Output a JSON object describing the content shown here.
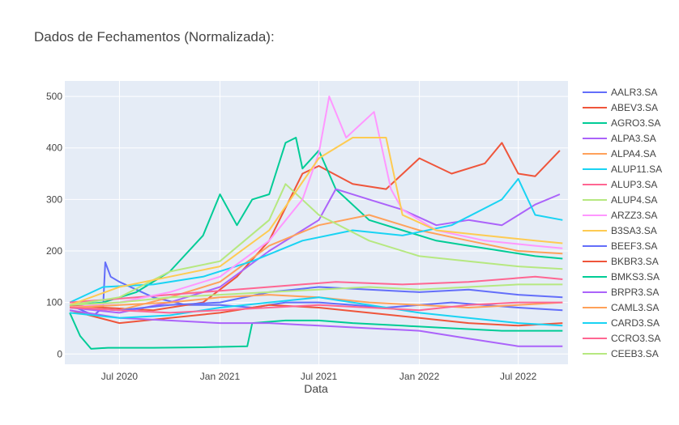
{
  "chart_data": {
    "type": "line",
    "title": "Dados de Fechamentos (Normalizada):",
    "xlabel": "Data",
    "ylabel": "",
    "x_range": [
      "2020-03-23",
      "2022-09-30"
    ],
    "ylim": [
      -20,
      530
    ],
    "x_ticks": [
      {
        "date": "2020-07-01",
        "label": "Jul 2020"
      },
      {
        "date": "2021-01-01",
        "label": "Jan 2021"
      },
      {
        "date": "2021-07-01",
        "label": "Jul 2021"
      },
      {
        "date": "2022-01-01",
        "label": "Jan 2022"
      },
      {
        "date": "2022-07-01",
        "label": "Jul 2022"
      }
    ],
    "y_ticks": [
      0,
      100,
      200,
      300,
      400,
      500
    ],
    "grid": true,
    "legend_position": "right",
    "series": [
      {
        "name": "AALR3.SA",
        "color": "#636efa",
        "x": [
          "2020-04-01",
          "2020-05-15",
          "2020-06-01",
          "2020-06-05",
          "2020-06-15",
          "2020-07-01",
          "2020-09-01",
          "2020-11-01",
          "2021-01-01",
          "2021-03-01",
          "2021-05-01",
          "2021-07-01",
          "2021-09-01",
          "2021-11-01",
          "2022-01-01",
          "2022-03-01",
          "2022-05-01",
          "2022-07-01",
          "2022-09-20"
        ],
        "y": [
          95,
          75,
          90,
          178,
          150,
          140,
          110,
          95,
          95,
          90,
          100,
          100,
          95,
          90,
          95,
          100,
          95,
          90,
          85
        ]
      },
      {
        "name": "ABEV3.SA",
        "color": "#ef553b",
        "x": [
          "2020-04-01",
          "2020-06-01",
          "2020-09-01",
          "2020-12-01",
          "2021-02-01",
          "2021-04-01",
          "2021-06-01",
          "2021-07-01",
          "2021-09-01",
          "2021-11-01",
          "2022-01-01",
          "2022-03-01",
          "2022-05-01",
          "2022-06-01",
          "2022-07-01",
          "2022-08-01",
          "2022-09-15"
        ],
        "y": [
          95,
          90,
          85,
          100,
          150,
          220,
          350,
          365,
          330,
          320,
          380,
          350,
          370,
          410,
          350,
          345,
          395
        ]
      },
      {
        "name": "AGRO3.SA",
        "color": "#00cc96",
        "x": [
          "2020-04-01",
          "2020-06-01",
          "2020-08-01",
          "2020-10-01",
          "2020-12-01",
          "2021-01-01",
          "2021-02-01",
          "2021-03-01",
          "2021-04-01",
          "2021-05-01",
          "2021-05-20",
          "2021-06-01",
          "2021-07-01",
          "2021-08-01",
          "2021-10-01",
          "2021-12-01",
          "2022-02-01",
          "2022-04-01",
          "2022-06-01",
          "2022-08-01",
          "2022-09-20"
        ],
        "y": [
          95,
          100,
          120,
          160,
          230,
          310,
          250,
          300,
          310,
          410,
          420,
          360,
          395,
          320,
          260,
          240,
          220,
          210,
          200,
          190,
          185
        ]
      },
      {
        "name": "ALPA3.SA",
        "color": "#ab63fa",
        "x": [
          "2020-04-01",
          "2020-07-01",
          "2020-10-01",
          "2021-01-01",
          "2021-04-01",
          "2021-07-01",
          "2021-08-01",
          "2021-10-01",
          "2021-12-01",
          "2022-02-01",
          "2022-04-01",
          "2022-06-01",
          "2022-08-01",
          "2022-09-15"
        ],
        "y": [
          90,
          80,
          100,
          130,
          200,
          260,
          320,
          300,
          280,
          250,
          260,
          250,
          290,
          310
        ]
      },
      {
        "name": "ALPA4.SA",
        "color": "#ffa15a",
        "x": [
          "2020-04-01",
          "2020-07-01",
          "2020-10-01",
          "2021-01-01",
          "2021-04-01",
          "2021-07-01",
          "2021-10-01",
          "2022-01-01",
          "2022-04-01",
          "2022-07-01",
          "2022-09-20"
        ],
        "y": [
          92,
          85,
          110,
          140,
          210,
          250,
          270,
          240,
          220,
          200,
          195
        ]
      },
      {
        "name": "ALUP11.SA",
        "color": "#19d3f3",
        "x": [
          "2020-04-01",
          "2020-06-01",
          "2020-09-01",
          "2020-12-01",
          "2021-03-01",
          "2021-06-01",
          "2021-09-01",
          "2021-12-01",
          "2022-03-01",
          "2022-06-01",
          "2022-07-01",
          "2022-08-01",
          "2022-09-20"
        ],
        "y": [
          100,
          130,
          135,
          150,
          180,
          220,
          240,
          230,
          250,
          300,
          340,
          270,
          260
        ]
      },
      {
        "name": "ALUP3.SA",
        "color": "#ff6692",
        "x": [
          "2020-04-01",
          "2020-08-01",
          "2020-12-01",
          "2021-04-01",
          "2021-08-01",
          "2021-12-01",
          "2022-04-01",
          "2022-08-01",
          "2022-09-20"
        ],
        "y": [
          100,
          110,
          120,
          130,
          140,
          135,
          140,
          150,
          145
        ]
      },
      {
        "name": "ALUP4.SA",
        "color": "#b6e880",
        "x": [
          "2020-04-01",
          "2020-07-01",
          "2020-10-01",
          "2021-01-01",
          "2021-04-01",
          "2021-05-01",
          "2021-07-01",
          "2021-10-01",
          "2022-01-01",
          "2022-04-01",
          "2022-07-01",
          "2022-09-20"
        ],
        "y": [
          95,
          110,
          160,
          180,
          260,
          330,
          270,
          220,
          190,
          180,
          170,
          165
        ]
      },
      {
        "name": "ARZZ3.SA",
        "color": "#ff97ff",
        "x": [
          "2020-04-01",
          "2020-07-01",
          "2020-10-01",
          "2021-01-01",
          "2021-04-01",
          "2021-06-01",
          "2021-07-01",
          "2021-07-20",
          "2021-08-20",
          "2021-10-10",
          "2021-11-10",
          "2021-12-01",
          "2022-02-01",
          "2022-05-01",
          "2022-08-01",
          "2022-09-20"
        ],
        "y": [
          90,
          100,
          120,
          150,
          220,
          300,
          390,
          500,
          420,
          470,
          320,
          280,
          240,
          220,
          210,
          205
        ]
      },
      {
        "name": "B3SA3.SA",
        "color": "#fecb52",
        "x": [
          "2020-04-01",
          "2020-07-01",
          "2020-10-01",
          "2021-01-01",
          "2021-04-01",
          "2021-07-01",
          "2021-09-01",
          "2021-11-01",
          "2021-12-01",
          "2022-02-01",
          "2022-05-01",
          "2022-08-01",
          "2022-09-20"
        ],
        "y": [
          95,
          130,
          150,
          170,
          240,
          380,
          420,
          420,
          270,
          240,
          230,
          220,
          215
        ]
      },
      {
        "name": "BEEF3.SA",
        "color": "#636efa",
        "x": [
          "2020-04-01",
          "2020-07-01",
          "2020-10-01",
          "2021-01-01",
          "2021-04-01",
          "2021-07-01",
          "2021-10-01",
          "2022-01-01",
          "2022-04-01",
          "2022-07-01",
          "2022-09-20"
        ],
        "y": [
          90,
          85,
          95,
          100,
          120,
          130,
          125,
          120,
          125,
          115,
          110
        ]
      },
      {
        "name": "BKBR3.SA",
        "color": "#ef553b",
        "x": [
          "2020-04-01",
          "2020-07-01",
          "2020-10-01",
          "2021-01-01",
          "2021-04-01",
          "2021-07-01",
          "2021-10-01",
          "2022-01-01",
          "2022-04-01",
          "2022-07-01",
          "2022-09-20"
        ],
        "y": [
          85,
          60,
          70,
          80,
          95,
          90,
          80,
          70,
          60,
          55,
          60
        ]
      },
      {
        "name": "BMKS3.SA",
        "color": "#00cc96",
        "x": [
          "2020-04-01",
          "2020-04-20",
          "2020-05-10",
          "2020-06-10",
          "2020-09-01",
          "2020-12-01",
          "2021-02-20",
          "2021-03-01",
          "2021-05-01",
          "2021-07-01",
          "2021-09-01",
          "2021-12-01",
          "2022-03-01",
          "2022-06-01",
          "2022-09-20"
        ],
        "y": [
          80,
          35,
          10,
          12,
          12,
          13,
          15,
          60,
          65,
          65,
          60,
          55,
          50,
          45,
          45
        ]
      },
      {
        "name": "BRPR3.SA",
        "color": "#ab63fa",
        "x": [
          "2020-04-01",
          "2020-07-01",
          "2020-10-01",
          "2021-01-01",
          "2021-04-01",
          "2021-07-01",
          "2021-10-01",
          "2022-01-01",
          "2022-04-01",
          "2022-07-01",
          "2022-09-20"
        ],
        "y": [
          85,
          70,
          65,
          60,
          60,
          55,
          50,
          45,
          30,
          15,
          15
        ]
      },
      {
        "name": "CAML3.SA",
        "color": "#ffa15a",
        "x": [
          "2020-04-01",
          "2020-07-01",
          "2020-10-01",
          "2021-01-01",
          "2021-04-01",
          "2021-07-01",
          "2021-10-01",
          "2022-01-01",
          "2022-04-01",
          "2022-07-01",
          "2022-09-20"
        ],
        "y": [
          90,
          95,
          100,
          110,
          115,
          110,
          100,
          95,
          90,
          95,
          100
        ]
      },
      {
        "name": "CARD3.SA",
        "color": "#19d3f3",
        "x": [
          "2020-04-01",
          "2020-07-01",
          "2020-10-01",
          "2021-01-01",
          "2021-04-01",
          "2021-07-01",
          "2021-10-01",
          "2022-01-01",
          "2022-04-01",
          "2022-07-01",
          "2022-09-20"
        ],
        "y": [
          80,
          70,
          75,
          90,
          100,
          110,
          95,
          80,
          70,
          60,
          55
        ]
      },
      {
        "name": "CCRO3.SA",
        "color": "#ff6692",
        "x": [
          "2020-04-01",
          "2020-07-01",
          "2020-10-01",
          "2021-01-01",
          "2021-04-01",
          "2021-07-01",
          "2021-10-01",
          "2022-01-01",
          "2022-04-01",
          "2022-07-01",
          "2022-09-20"
        ],
        "y": [
          90,
          85,
          80,
          85,
          90,
          95,
          90,
          85,
          95,
          100,
          100
        ]
      },
      {
        "name": "CEEB3.SA",
        "color": "#b6e880",
        "x": [
          "2020-04-01",
          "2020-07-01",
          "2020-10-01",
          "2021-01-01",
          "2021-04-01",
          "2021-07-01",
          "2021-10-01",
          "2022-01-01",
          "2022-04-01",
          "2022-07-01",
          "2022-09-20"
        ],
        "y": [
          95,
          100,
          110,
          115,
          120,
          125,
          130,
          125,
          130,
          135,
          135
        ]
      }
    ]
  }
}
